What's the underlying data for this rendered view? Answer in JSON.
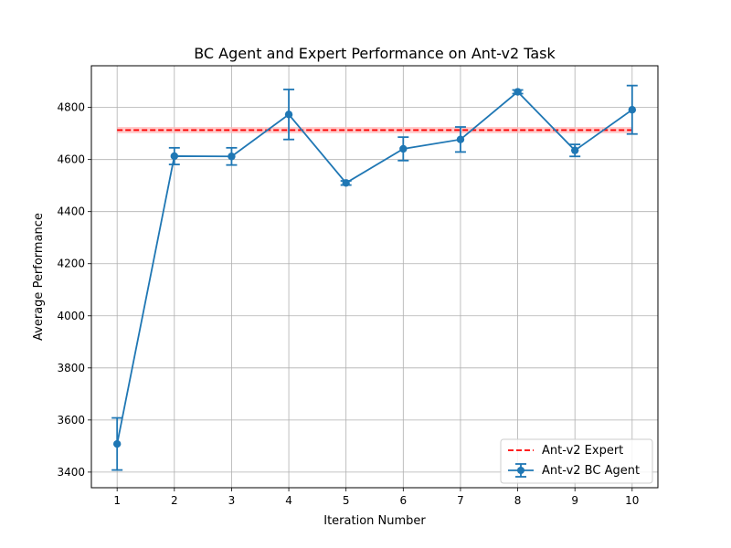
{
  "chart_data": {
    "type": "line",
    "title": "BC Agent and Expert Performance on Ant-v2 Task",
    "xlabel": "Iteration Number",
    "ylabel": "Average Performance",
    "xlim": [
      0.55,
      10.45
    ],
    "ylim": [
      3340,
      4960
    ],
    "x_ticks": [
      1,
      2,
      3,
      4,
      5,
      6,
      7,
      8,
      9,
      10
    ],
    "y_ticks": [
      3400,
      3600,
      3800,
      4000,
      4200,
      4400,
      4600,
      4800
    ],
    "grid": true,
    "legend_position": "lower-right",
    "expert": {
      "name": "Ant-v2 Expert",
      "mean": 4713,
      "std": 12,
      "x_range": [
        1,
        10
      ],
      "color": "#ff0000",
      "band_color": "#ffb3b3"
    },
    "series": [
      {
        "name": "Ant-v2 BC Agent",
        "color": "#1f77b4",
        "x": [
          1,
          2,
          3,
          4,
          5,
          6,
          7,
          8,
          9,
          10
        ],
        "values": [
          3508,
          4613,
          4612,
          4773,
          4510,
          4641,
          4677,
          4860,
          4635,
          4791
        ],
        "errors": [
          100,
          32,
          33,
          96,
          8,
          45,
          48,
          7,
          23,
          93
        ]
      }
    ]
  }
}
